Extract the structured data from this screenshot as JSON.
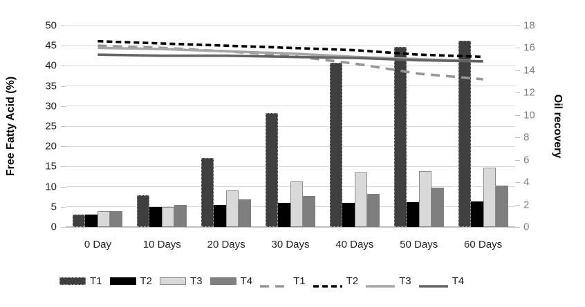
{
  "chart_data": {
    "type": "bar",
    "subtype": "combo-bar-line-dual-axis",
    "title": "",
    "categories": [
      "0 Day",
      "10 Days",
      "20 Days",
      "30 Days",
      "40 Days",
      "50 Days",
      "60 Days"
    ],
    "bar_series": [
      {
        "name": "T1",
        "color": "#3f3f3f",
        "border": "dashed",
        "values": [
          3.1,
          7.8,
          17.1,
          28.3,
          40.8,
          44.7,
          46.2
        ]
      },
      {
        "name": "T2",
        "color": "#000000",
        "border": "none",
        "values": [
          3.0,
          5.0,
          5.5,
          6.0,
          6.0,
          6.2,
          6.3
        ]
      },
      {
        "name": "T3",
        "color": "#d9d9d9",
        "border": "solid",
        "values": [
          4.0,
          4.9,
          9.1,
          11.3,
          13.6,
          13.9,
          14.7
        ]
      },
      {
        "name": "T4",
        "color": "#7f7f7f",
        "border": "none",
        "values": [
          3.9,
          5.5,
          6.8,
          7.7,
          8.2,
          9.7,
          10.3
        ]
      }
    ],
    "line_series": [
      {
        "name": "T1",
        "color": "#969696",
        "dash": "13 9",
        "width": 3.6,
        "values": [
          16.2,
          16.0,
          15.7,
          15.3,
          14.6,
          13.7,
          13.2
        ]
      },
      {
        "name": "T2",
        "color": "#000000",
        "dash": "8 5",
        "width": 3.6,
        "values": [
          16.6,
          16.4,
          16.2,
          16.0,
          15.8,
          15.4,
          15.2
        ]
      },
      {
        "name": "T3",
        "color": "#a6a6a6",
        "dash": "",
        "width": 3.6,
        "values": [
          16.0,
          15.9,
          15.7,
          15.5,
          15.2,
          15.0,
          14.8
        ]
      },
      {
        "name": "T4",
        "color": "#636363",
        "dash": "",
        "width": 3.6,
        "values": [
          15.4,
          15.3,
          15.3,
          15.2,
          15.1,
          14.9,
          14.8
        ]
      }
    ],
    "left_axis": {
      "label": "Free Fatty Acid (%)",
      "min": 0,
      "max": 50,
      "step": 5,
      "ticks": [
        "0",
        "5",
        "10",
        "15",
        "20",
        "25",
        "30",
        "35",
        "40",
        "45",
        "50"
      ]
    },
    "right_axis": {
      "label": "Oil recovery",
      "min": 0,
      "max": 18,
      "step": 2,
      "ticks": [
        "0",
        "2",
        "4",
        "6",
        "8",
        "10",
        "12",
        "14",
        "16",
        "18"
      ]
    },
    "grid": true,
    "legend_position": "bottom",
    "legend": [
      {
        "label": "T1",
        "swatch": "bar-0"
      },
      {
        "label": "T2",
        "swatch": "bar-1"
      },
      {
        "label": "T3",
        "swatch": "bar-2"
      },
      {
        "label": "T4",
        "swatch": "bar-3"
      },
      {
        "label": "T1",
        "swatch": "line-0"
      },
      {
        "label": "T2",
        "swatch": "line-1"
      },
      {
        "label": "T3",
        "swatch": "line-2"
      },
      {
        "label": "T4",
        "swatch": "line-3"
      }
    ]
  },
  "colors": {
    "background": "#ffffff",
    "gridline": "#d9d9d9",
    "axis_line": "#bfbfbf",
    "left_tick_text": "#1f1f1f",
    "right_tick_text": "#7f7f7f"
  }
}
